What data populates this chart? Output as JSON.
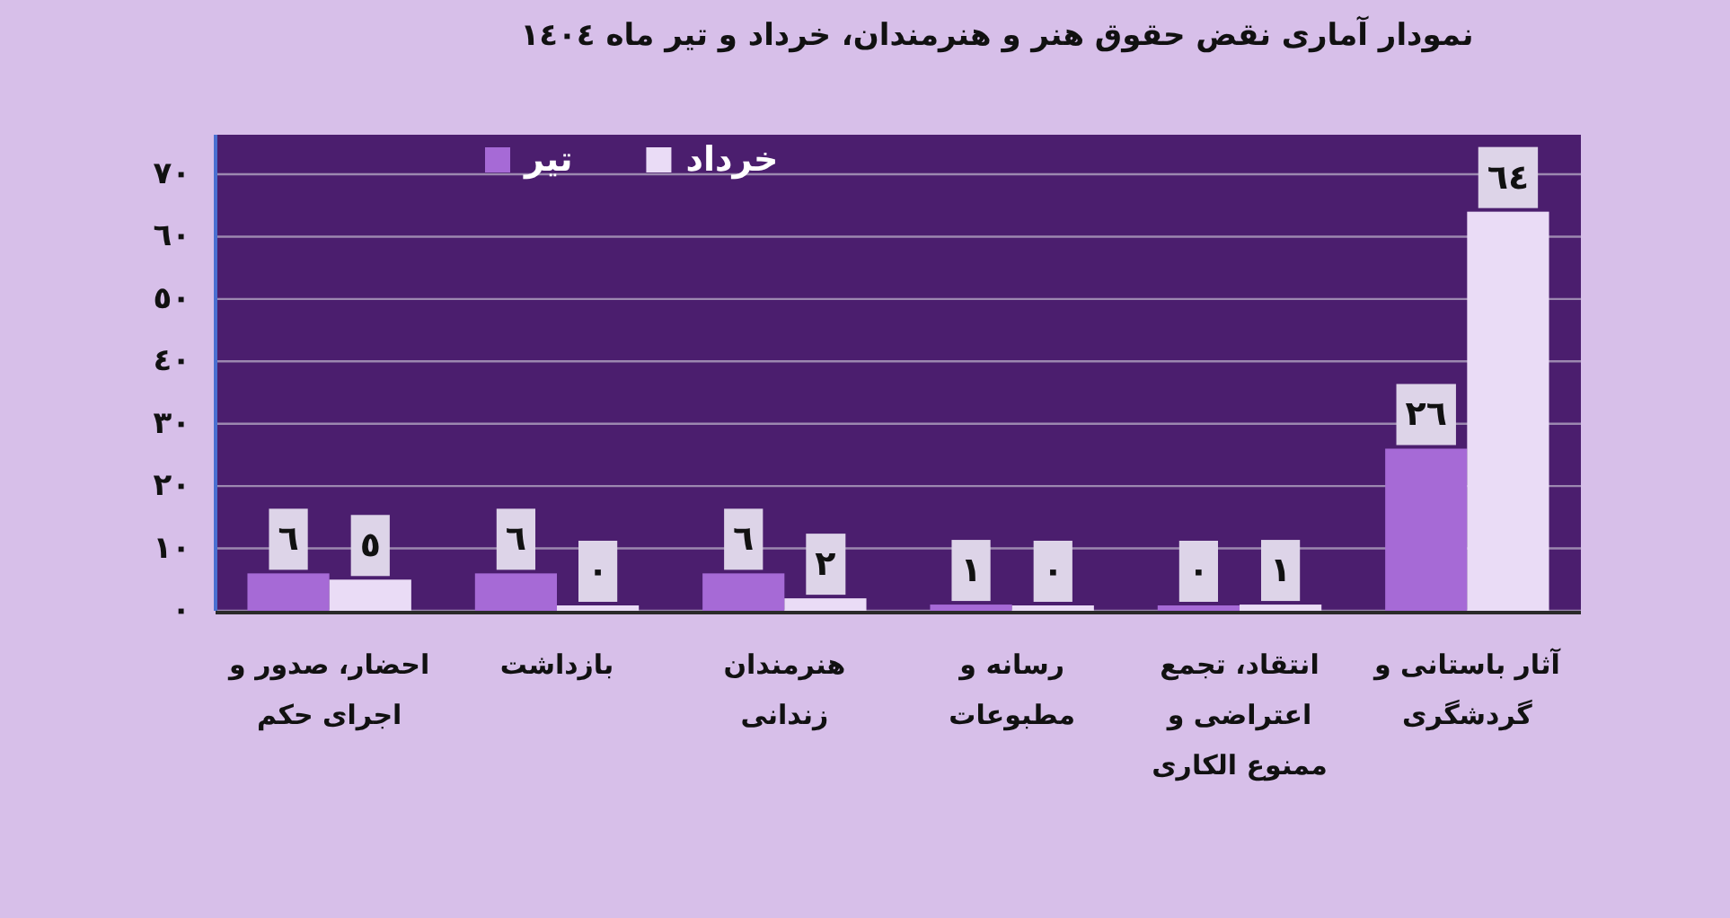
{
  "chart_data": {
    "type": "bar",
    "title": "نمودار آماری نقض حقوق هنر و هنرمندان، خرداد و تیر ماه ١٤٠٤",
    "categories": [
      "احضار، صدور و اجرای حکم",
      "بازداشت",
      "هنرمندان زندانی",
      "رسانه و مطبوعات",
      "انتقاد، تجمع اعتراضی و ممنوع الکاری",
      "آثار باستانی و گردشگری"
    ],
    "series": [
      {
        "name": "تیر",
        "color": "#a66ad6",
        "values": [
          6,
          6,
          6,
          1,
          0,
          26
        ],
        "value_labels": [
          "٦",
          "٦",
          "٦",
          "١",
          "٠",
          "٢٦"
        ]
      },
      {
        "name": "خرداد",
        "color": "#eadcf6",
        "values": [
          5,
          0,
          2,
          0,
          1,
          64
        ],
        "value_labels": [
          "٥",
          "٠",
          "٢",
          "٠",
          "١",
          "٦٤"
        ]
      }
    ],
    "ylim": [
      0,
      70
    ],
    "yticks": [
      {
        "value": 0,
        "label": "٠"
      },
      {
        "value": 10,
        "label": "١٠"
      },
      {
        "value": 20,
        "label": "٢٠"
      },
      {
        "value": 30,
        "label": "٣٠"
      },
      {
        "value": 40,
        "label": "٤٠"
      },
      {
        "value": 50,
        "label": "٥٠"
      },
      {
        "value": 60,
        "label": "٦٠"
      },
      {
        "value": 70,
        "label": "٧٠"
      }
    ],
    "grid": "y",
    "legend": "top left"
  }
}
